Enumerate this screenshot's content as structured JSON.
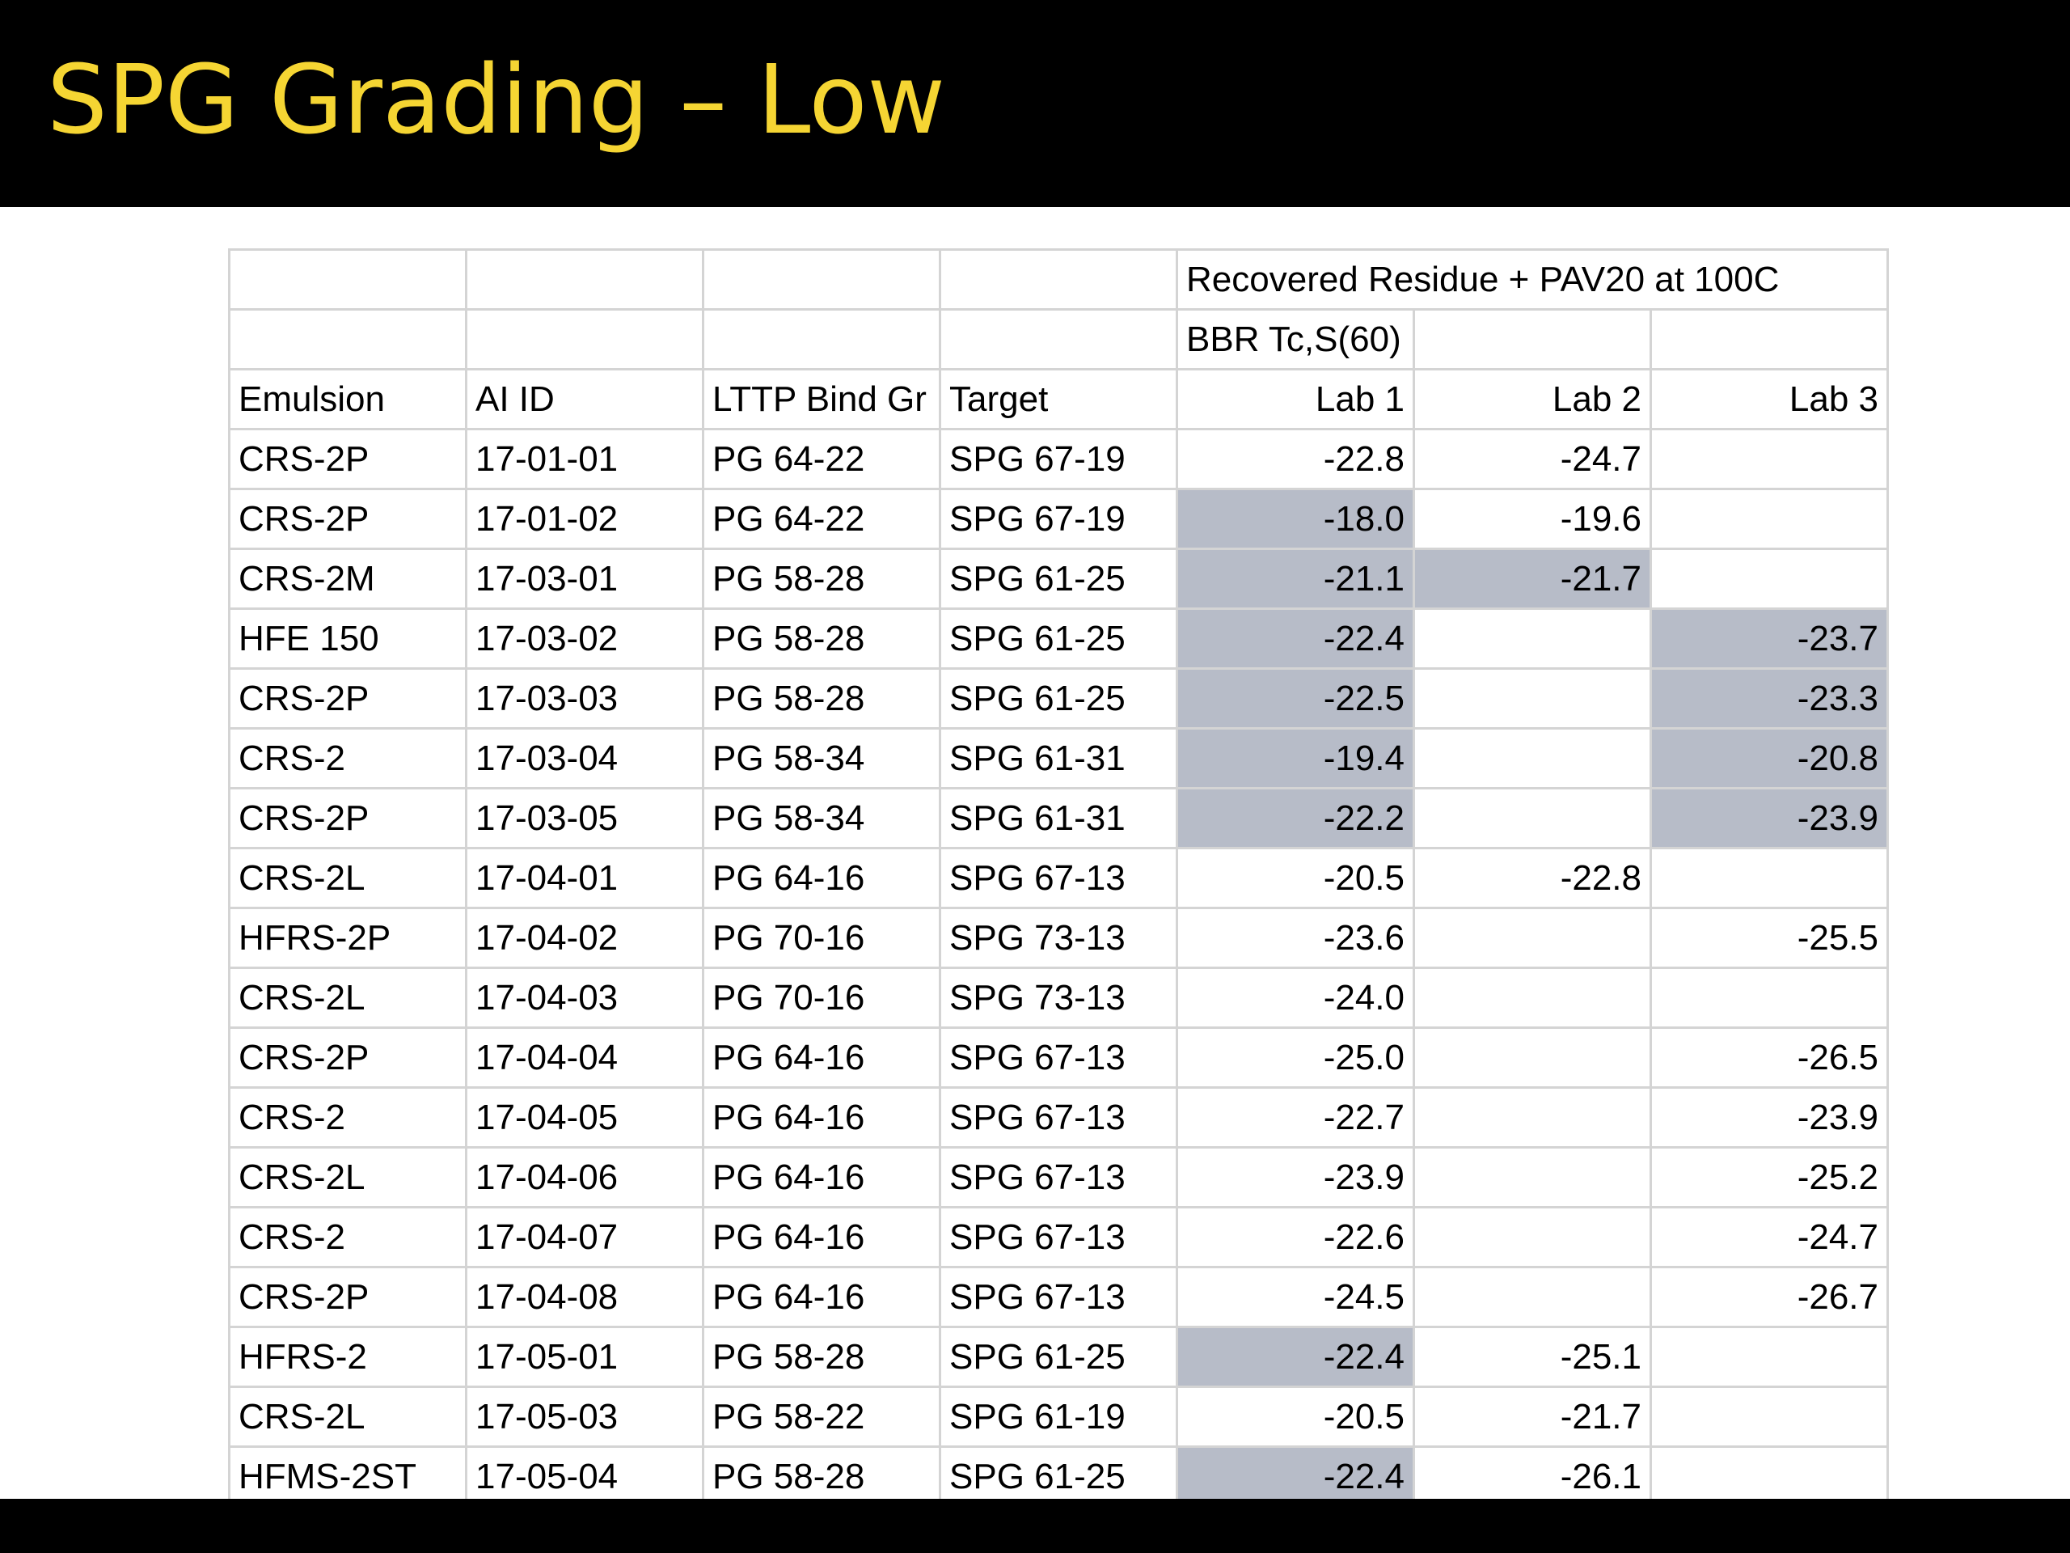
{
  "slide": {
    "title": "SPG Grading – Low"
  },
  "header": {
    "group_title": "Recovered Residue + PAV20 at 100C",
    "subgroup_title": "BBR Tc,S(60)",
    "columns": [
      "Emulsion",
      "AI ID",
      "LTTP Bind Gr",
      "Target",
      "Lab 1",
      "Lab 2",
      "Lab 3"
    ]
  },
  "colors": {
    "title_text": "#f5d533",
    "title_bar": "#000000",
    "highlight": "#b7bcc8",
    "grid": "#d4d4d4"
  },
  "rows": [
    {
      "emulsion": "CRS-2P",
      "ai_id": "17-01-01",
      "lttp": "PG 64-22",
      "target": "SPG 67-19",
      "lab1": "-22.8",
      "lab2": "-24.7",
      "lab3": "",
      "hl": [
        false,
        false,
        false
      ]
    },
    {
      "emulsion": "CRS-2P",
      "ai_id": "17-01-02",
      "lttp": "PG 64-22",
      "target": "SPG 67-19",
      "lab1": "-18.0",
      "lab2": "-19.6",
      "lab3": "",
      "hl": [
        true,
        false,
        false
      ]
    },
    {
      "emulsion": "CRS-2M",
      "ai_id": "17-03-01",
      "lttp": "PG 58-28",
      "target": "SPG 61-25",
      "lab1": "-21.1",
      "lab2": "-21.7",
      "lab3": "",
      "hl": [
        true,
        true,
        false
      ]
    },
    {
      "emulsion": "HFE 150",
      "ai_id": "17-03-02",
      "lttp": "PG 58-28",
      "target": "SPG 61-25",
      "lab1": "-22.4",
      "lab2": "",
      "lab3": "-23.7",
      "hl": [
        true,
        false,
        true
      ]
    },
    {
      "emulsion": "CRS-2P",
      "ai_id": "17-03-03",
      "lttp": "PG 58-28",
      "target": "SPG 61-25",
      "lab1": "-22.5",
      "lab2": "",
      "lab3": "-23.3",
      "hl": [
        true,
        false,
        true
      ]
    },
    {
      "emulsion": "CRS-2",
      "ai_id": "17-03-04",
      "lttp": "PG 58-34",
      "target": "SPG 61-31",
      "lab1": "-19.4",
      "lab2": "",
      "lab3": "-20.8",
      "hl": [
        true,
        false,
        true
      ]
    },
    {
      "emulsion": "CRS-2P",
      "ai_id": "17-03-05",
      "lttp": "PG 58-34",
      "target": "SPG 61-31",
      "lab1": "-22.2",
      "lab2": "",
      "lab3": "-23.9",
      "hl": [
        true,
        false,
        true
      ]
    },
    {
      "emulsion": "CRS-2L",
      "ai_id": "17-04-01",
      "lttp": "PG 64-16",
      "target": "SPG 67-13",
      "lab1": "-20.5",
      "lab2": "-22.8",
      "lab3": "",
      "hl": [
        false,
        false,
        false
      ]
    },
    {
      "emulsion": "HFRS-2P",
      "ai_id": "17-04-02",
      "lttp": "PG 70-16",
      "target": "SPG 73-13",
      "lab1": "-23.6",
      "lab2": "",
      "lab3": "-25.5",
      "hl": [
        false,
        false,
        false
      ]
    },
    {
      "emulsion": "CRS-2L",
      "ai_id": "17-04-03",
      "lttp": "PG 70-16",
      "target": "SPG 73-13",
      "lab1": "-24.0",
      "lab2": "",
      "lab3": "",
      "hl": [
        false,
        false,
        false
      ]
    },
    {
      "emulsion": "CRS-2P",
      "ai_id": "17-04-04",
      "lttp": "PG 64-16",
      "target": "SPG 67-13",
      "lab1": "-25.0",
      "lab2": "",
      "lab3": "-26.5",
      "hl": [
        false,
        false,
        false
      ]
    },
    {
      "emulsion": "CRS-2",
      "ai_id": "17-04-05",
      "lttp": "PG 64-16",
      "target": "SPG 67-13",
      "lab1": "-22.7",
      "lab2": "",
      "lab3": "-23.9",
      "hl": [
        false,
        false,
        false
      ]
    },
    {
      "emulsion": "CRS-2L",
      "ai_id": "17-04-06",
      "lttp": "PG 64-16",
      "target": "SPG 67-13",
      "lab1": "-23.9",
      "lab2": "",
      "lab3": "-25.2",
      "hl": [
        false,
        false,
        false
      ]
    },
    {
      "emulsion": "CRS-2",
      "ai_id": "17-04-07",
      "lttp": "PG 64-16",
      "target": "SPG 67-13",
      "lab1": "-22.6",
      "lab2": "",
      "lab3": "-24.7",
      "hl": [
        false,
        false,
        false
      ]
    },
    {
      "emulsion": "CRS-2P",
      "ai_id": "17-04-08",
      "lttp": "PG 64-16",
      "target": "SPG 67-13",
      "lab1": "-24.5",
      "lab2": "",
      "lab3": "-26.7",
      "hl": [
        false,
        false,
        false
      ]
    },
    {
      "emulsion": "HFRS-2",
      "ai_id": "17-05-01",
      "lttp": "PG 58-28",
      "target": "SPG 61-25",
      "lab1": "-22.4",
      "lab2": "-25.1",
      "lab3": "",
      "hl": [
        true,
        false,
        false
      ]
    },
    {
      "emulsion": "CRS-2L",
      "ai_id": "17-05-03",
      "lttp": "PG 58-22",
      "target": "SPG 61-19",
      "lab1": "-20.5",
      "lab2": "-21.7",
      "lab3": "",
      "hl": [
        false,
        false,
        false
      ]
    },
    {
      "emulsion": "HFMS-2ST",
      "ai_id": "17-05-04",
      "lttp": "PG 58-28",
      "target": "SPG 61-25",
      "lab1": "-22.4",
      "lab2": "-26.1",
      "lab3": "",
      "hl": [
        true,
        false,
        false
      ]
    }
  ]
}
